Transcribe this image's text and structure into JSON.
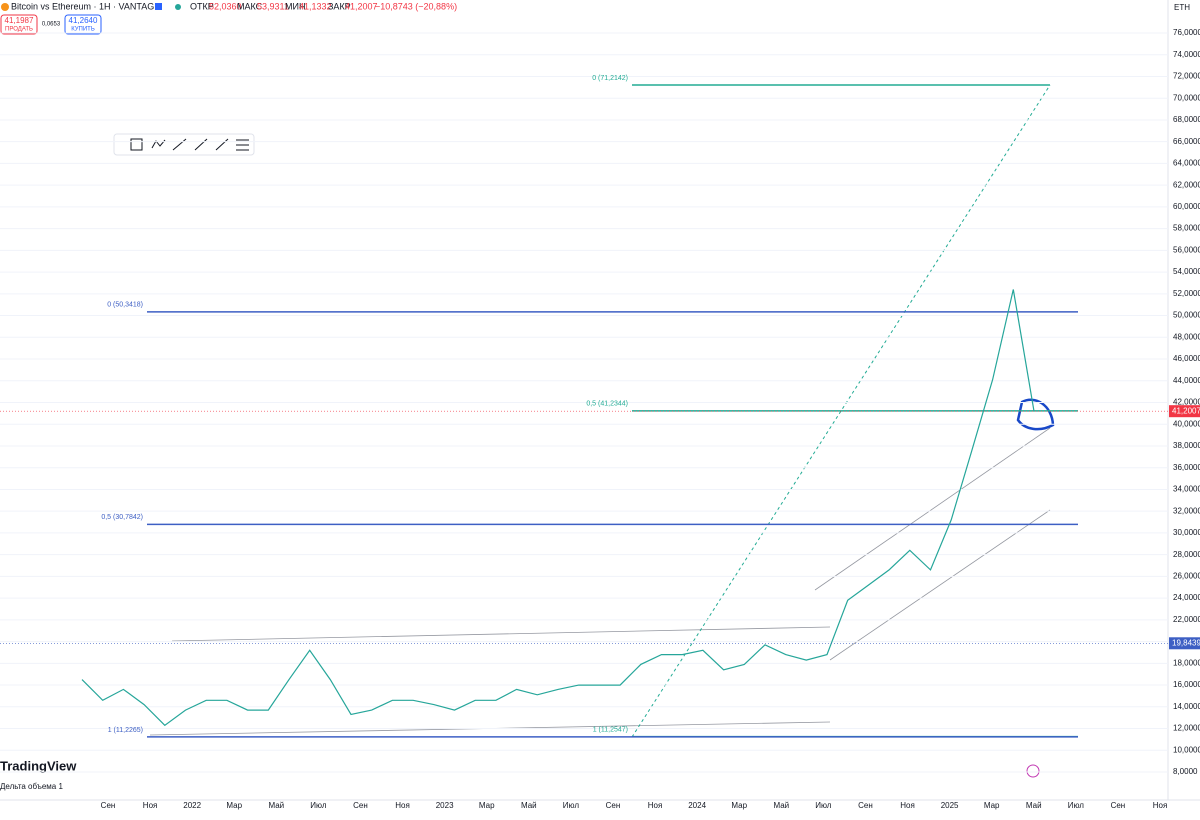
{
  "header": {
    "symbol": "Bitcoin vs Ethereum · 1H · VANTAGE",
    "open_label": "ОТКР",
    "open": "52,0360",
    "high_label": "МАКС",
    "high": "53,9311",
    "low_label": "МИН",
    "low": "41,1332",
    "close_label": "ЗАКР",
    "close": "41,2007",
    "change": "−10,8743 (−20,88%)",
    "sell_price": "41,1987",
    "sell": "ПРОДАТЬ",
    "spread": "0,0653",
    "buy_price": "41,2640",
    "buy": "КУПИТЬ",
    "currency": "ETH"
  },
  "chart_data": {
    "type": "line",
    "color": "#26a69a",
    "values": [
      16.5,
      14.6,
      15.6,
      14.2,
      12.3,
      13.7,
      14.6,
      14.6,
      13.7,
      13.7,
      16.5,
      19.2,
      16.5,
      13.3,
      13.7,
      14.6,
      14.6,
      14.2,
      13.7,
      14.6,
      14.6,
      15.6,
      15.1,
      15.6,
      16.0,
      16.0,
      16.0,
      17.9,
      18.8,
      18.8,
      19.2,
      17.4,
      17.9,
      19.7,
      18.8,
      18.3,
      18.8,
      23.8,
      25.2,
      26.6,
      28.4,
      26.6,
      31.2,
      37.6,
      44.1,
      52.4,
      41.2
    ],
    "ylim": [
      8,
      76
    ],
    "yticks": [
      {
        "value": 8,
        "label": "8,0000"
      },
      {
        "value": 10,
        "label": "10,0000"
      },
      {
        "value": 12,
        "label": "12,0000"
      },
      {
        "value": 14,
        "label": "14,0000"
      },
      {
        "value": 16,
        "label": "16,0000"
      },
      {
        "value": 18,
        "label": "18,0000"
      },
      {
        "value": 20,
        "label": "20,0000"
      },
      {
        "value": 22,
        "label": "22,0000"
      },
      {
        "value": 24,
        "label": "24,0000"
      },
      {
        "value": 26,
        "label": "26,0000"
      },
      {
        "value": 28,
        "label": "28,0000"
      },
      {
        "value": 30,
        "label": "30,0000"
      },
      {
        "value": 32,
        "label": "32,0000"
      },
      {
        "value": 34,
        "label": "34,0000"
      },
      {
        "value": 36,
        "label": "36,0000"
      },
      {
        "value": 38,
        "label": "38,0000"
      },
      {
        "value": 40,
        "label": "40,0000"
      },
      {
        "value": 42,
        "label": "42,0000"
      },
      {
        "value": 44,
        "label": "44,0000"
      },
      {
        "value": 46,
        "label": "46,0000"
      },
      {
        "value": 48,
        "label": "48,0000"
      },
      {
        "value": 50,
        "label": "50,0000"
      },
      {
        "value": 52,
        "label": "52,0000"
      },
      {
        "value": 54,
        "label": "54,0000"
      },
      {
        "value": 56,
        "label": "56,0000"
      },
      {
        "value": 58,
        "label": "58,0000"
      },
      {
        "value": 60,
        "label": "60,0000"
      },
      {
        "value": 62,
        "label": "62,0000"
      },
      {
        "value": 64,
        "label": "64,0000"
      },
      {
        "value": 66,
        "label": "66,0000"
      },
      {
        "value": 68,
        "label": "68,0000"
      },
      {
        "value": 70,
        "label": "70,0000"
      },
      {
        "value": 72,
        "label": "72,0000"
      },
      {
        "value": 74,
        "label": "74,0000"
      },
      {
        "value": 76,
        "label": "76,0000"
      }
    ],
    "x_labels": [
      "Сен",
      "Ноя",
      "2022",
      "Мар",
      "Май",
      "Июл",
      "Сен",
      "Ноя",
      "2023",
      "Мар",
      "Май",
      "Июл",
      "Сен",
      "Ноя",
      "2024",
      "Мар",
      "Май",
      "Июл",
      "Сен",
      "Ноя",
      "2025",
      "Мар",
      "Май",
      "Июл",
      "Сен",
      "Ноя"
    ],
    "levels": [
      {
        "label": "0 (71,2142)",
        "value": 71.2142,
        "color": "#22ab94"
      },
      {
        "label": "0,5 (41,2344)",
        "value": 41.2344,
        "color": "#22ab94"
      },
      {
        "label": "1 (11,2547)",
        "value": 11.2547,
        "color": "#22ab94"
      },
      {
        "label": "0 (50,3418)",
        "value": 50.3418,
        "color": "#3d5fc4"
      },
      {
        "label": "0,5 (30,7842)",
        "value": 30.7842,
        "color": "#3d5fc4"
      },
      {
        "label": "1 (11,2265)",
        "value": 11.2265,
        "color": "#3d5fc4"
      }
    ],
    "price_tags": [
      {
        "value": 41.2007,
        "label": "41,2007",
        "color": "#f23645"
      },
      {
        "value": 19.8439,
        "label": "19,8439",
        "color": "#3d5fc4"
      }
    ]
  },
  "footer": {
    "brand": "TradingView",
    "indicator": "Дельта объема 1"
  }
}
